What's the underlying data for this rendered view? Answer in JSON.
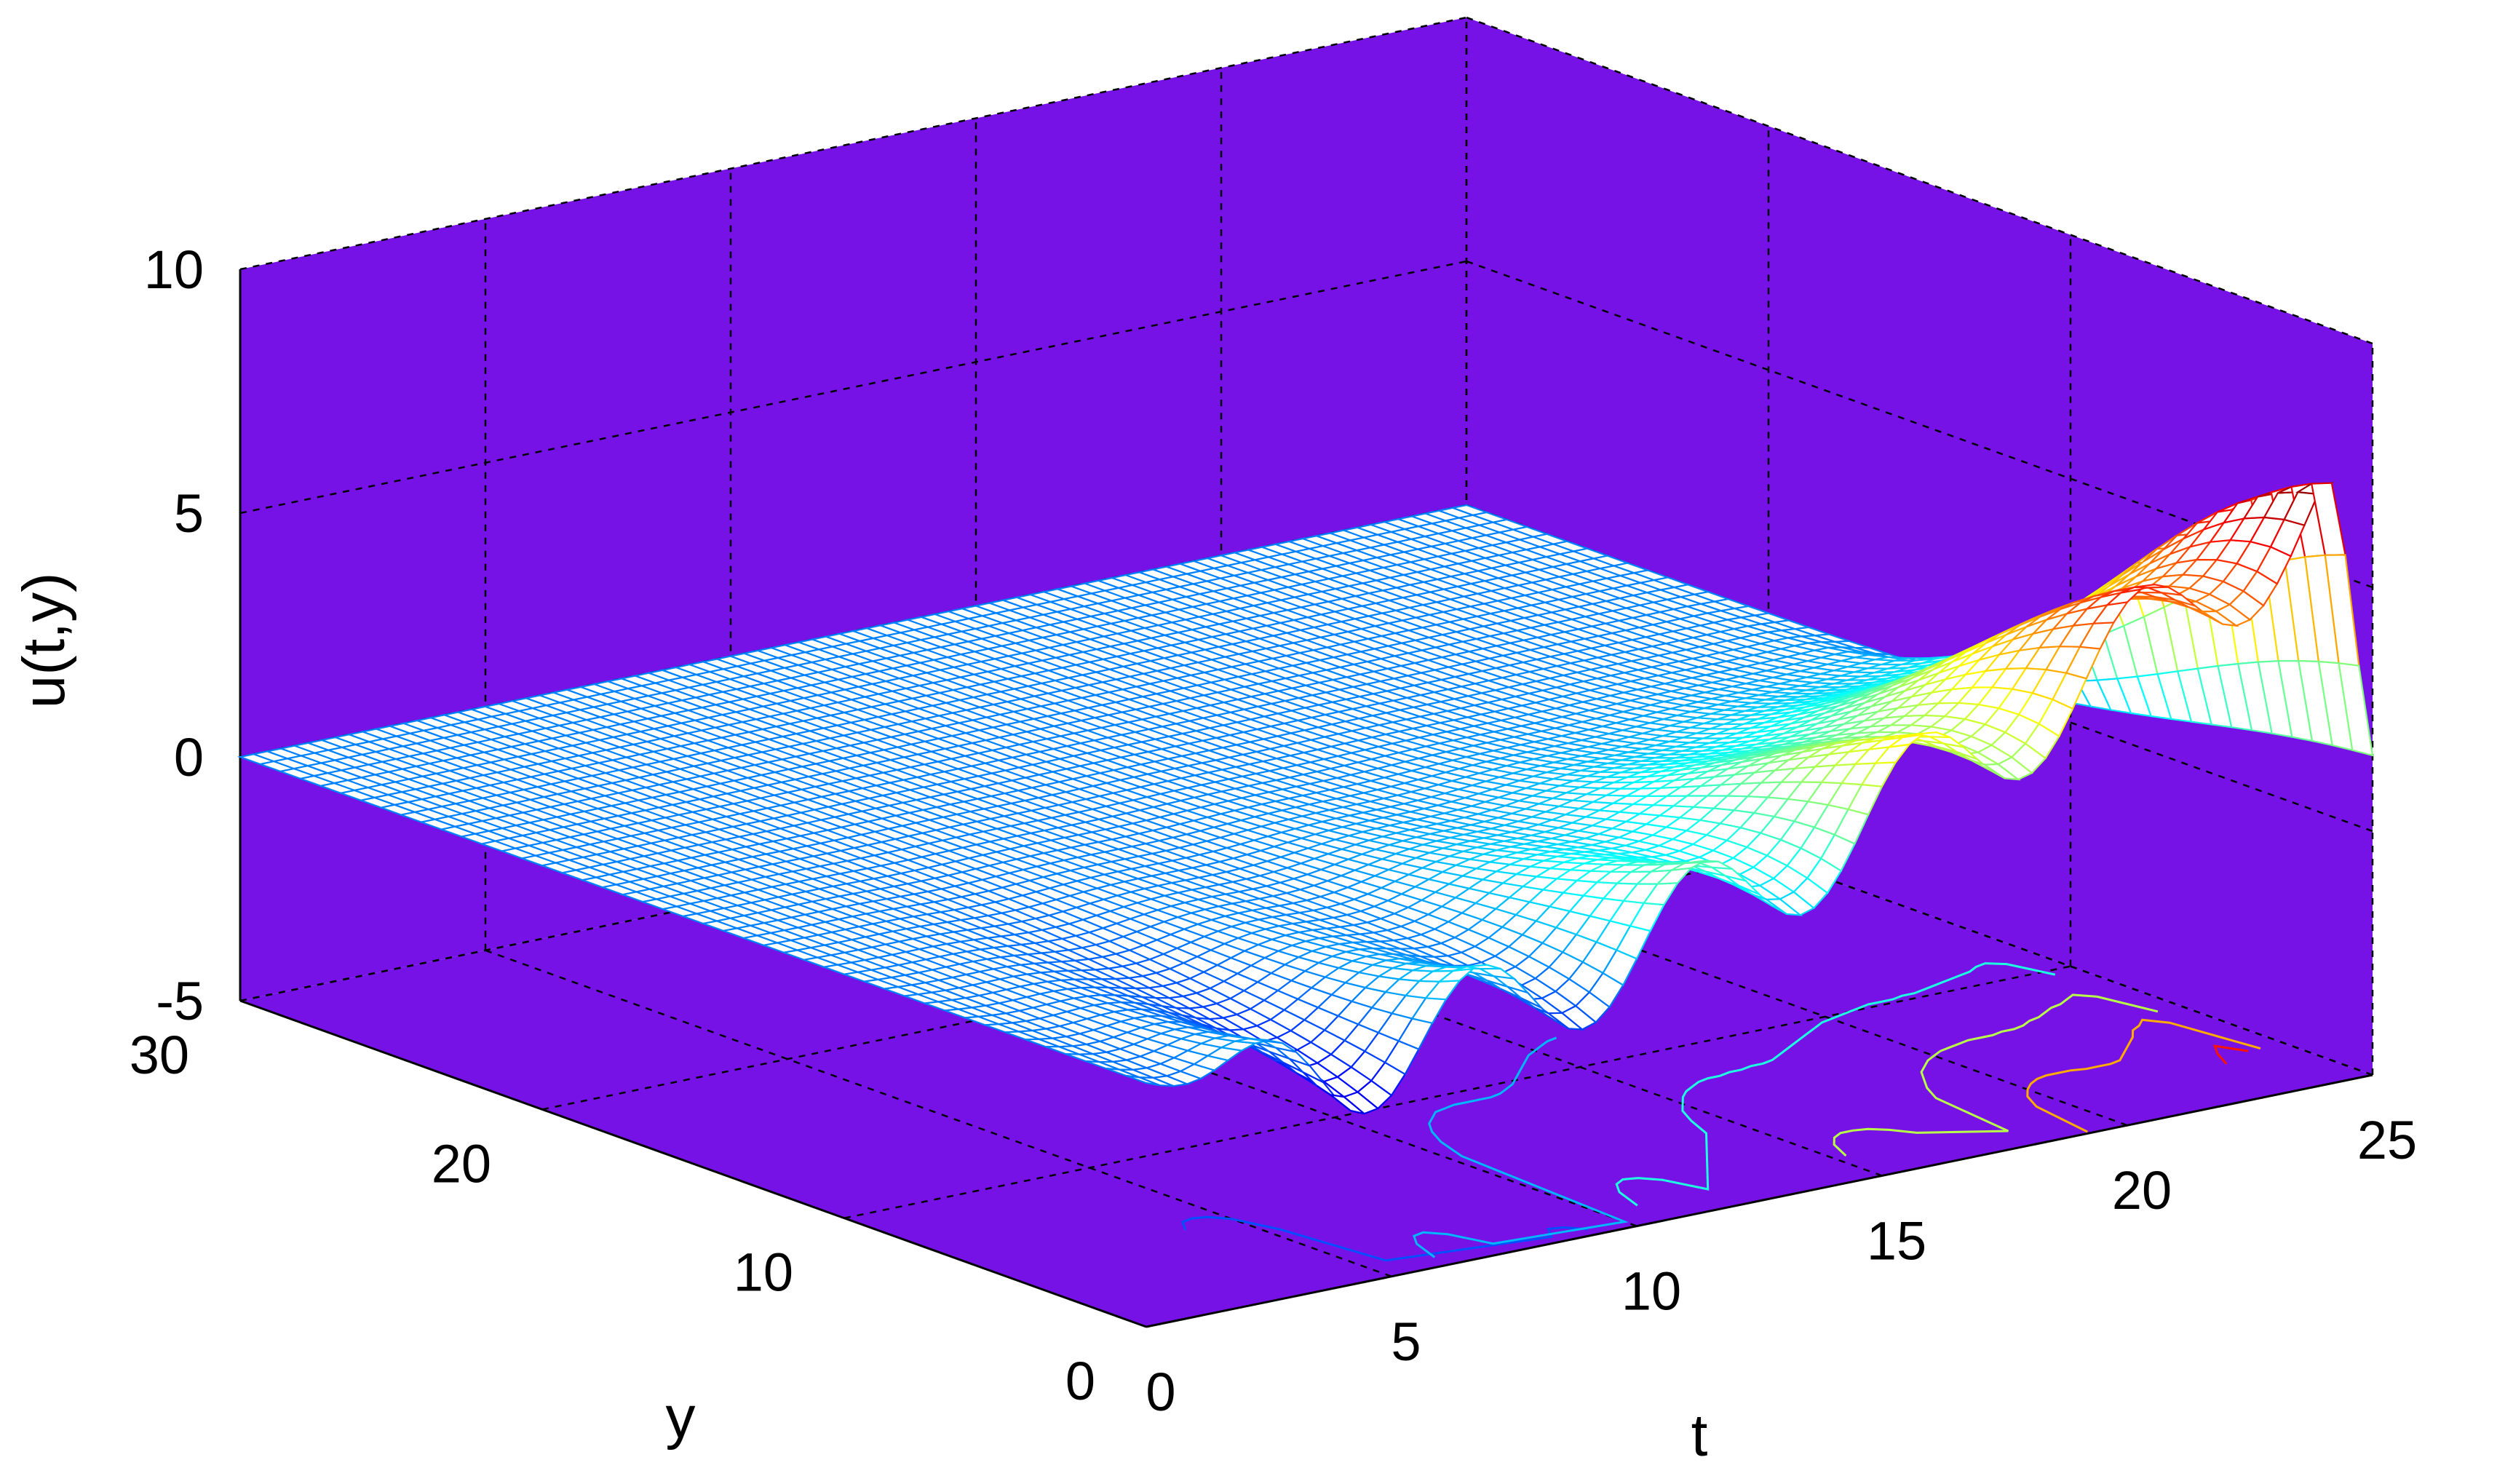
{
  "colors": {
    "pane": "#7612e6",
    "mesh_colormap": "jet",
    "contour_colormap": "jet"
  },
  "chart_data": {
    "type": "surface-mesh-with-contours",
    "title": "",
    "xlabel": "t",
    "ylabel": "y",
    "zlabel": "u(t,y)",
    "xlim": [
      0,
      25
    ],
    "ylim": [
      0,
      30
    ],
    "zlim": [
      -5,
      10
    ],
    "x_ticks": [
      "0",
      "5",
      "10",
      "15",
      "20",
      "25"
    ],
    "y_ticks": [
      "0",
      "10",
      "20",
      "30"
    ],
    "z_ticks": [
      "-5",
      "0",
      "5",
      "10"
    ],
    "grid": true,
    "contours_on_floor": true,
    "surface_summary": {
      "flat_value": 0,
      "peak": {
        "t": 24,
        "y": 0,
        "u": 7.4
      },
      "oscillation_period_t": 4.5,
      "ripple_min_u": -2.5
    }
  }
}
